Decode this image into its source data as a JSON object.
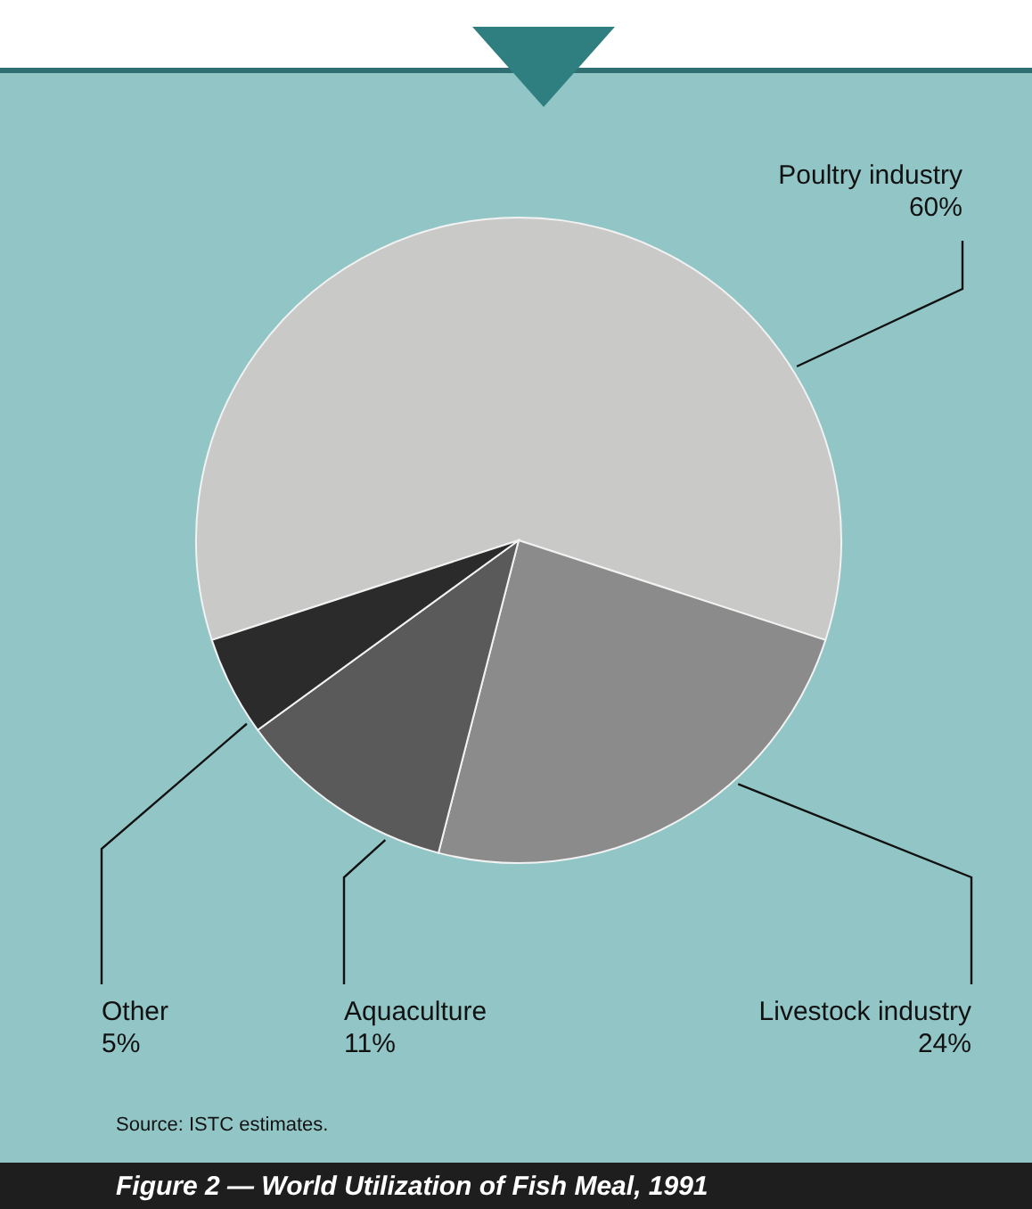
{
  "chart_data": {
    "type": "pie",
    "title": "Figure 2 — World Utilization of Fish Meal, 1991",
    "categories": [
      "Poultry industry",
      "Livestock industry",
      "Aquaculture",
      "Other"
    ],
    "values": [
      60,
      24,
      11,
      5
    ],
    "value_labels": [
      "60%",
      "24%",
      "11%",
      "5%"
    ],
    "colors": [
      "#c9c9c7",
      "#8b8b8b",
      "#5a5a5a",
      "#2b2b2b"
    ],
    "annotations": [
      "Source: ISTC estimates."
    ]
  }
}
